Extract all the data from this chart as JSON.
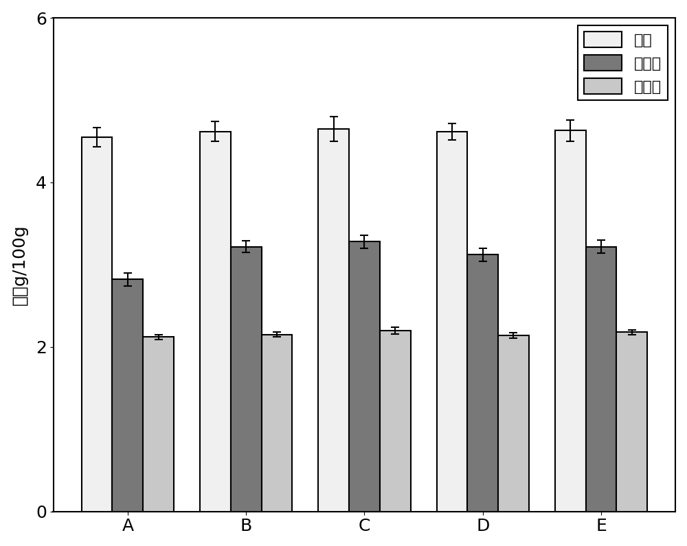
{
  "categories": [
    "A",
    "B",
    "C",
    "D",
    "E"
  ],
  "series_names": [
    "多糖",
    "粗纤维",
    "蛋白质"
  ],
  "values": {
    "多糖": [
      4.55,
      4.62,
      4.65,
      4.62,
      4.63
    ],
    "粗纤维": [
      2.82,
      3.22,
      3.28,
      3.12,
      3.22
    ],
    "蛋白质": [
      2.12,
      2.15,
      2.2,
      2.14,
      2.18
    ]
  },
  "errors": {
    "多糖": [
      0.12,
      0.12,
      0.15,
      0.1,
      0.13
    ],
    "粗纤维": [
      0.08,
      0.07,
      0.08,
      0.08,
      0.08
    ],
    "蛋白质": [
      0.03,
      0.03,
      0.04,
      0.03,
      0.03
    ]
  },
  "bar_colors": {
    "多糖": "#f0f0f0",
    "粗纤维": "#787878",
    "蛋白质": "#c8c8c8"
  },
  "edgecolor": "#000000",
  "ylabel": "含量g/100g",
  "ylim": [
    0,
    6
  ],
  "yticks": [
    0,
    2,
    4,
    6
  ],
  "bar_width": 0.26,
  "legend_fontsize": 16,
  "tick_fontsize": 18,
  "ylabel_fontsize": 18,
  "background_color": "#ffffff",
  "figsize": [
    10.0,
    7.96
  ],
  "dpi": 100
}
